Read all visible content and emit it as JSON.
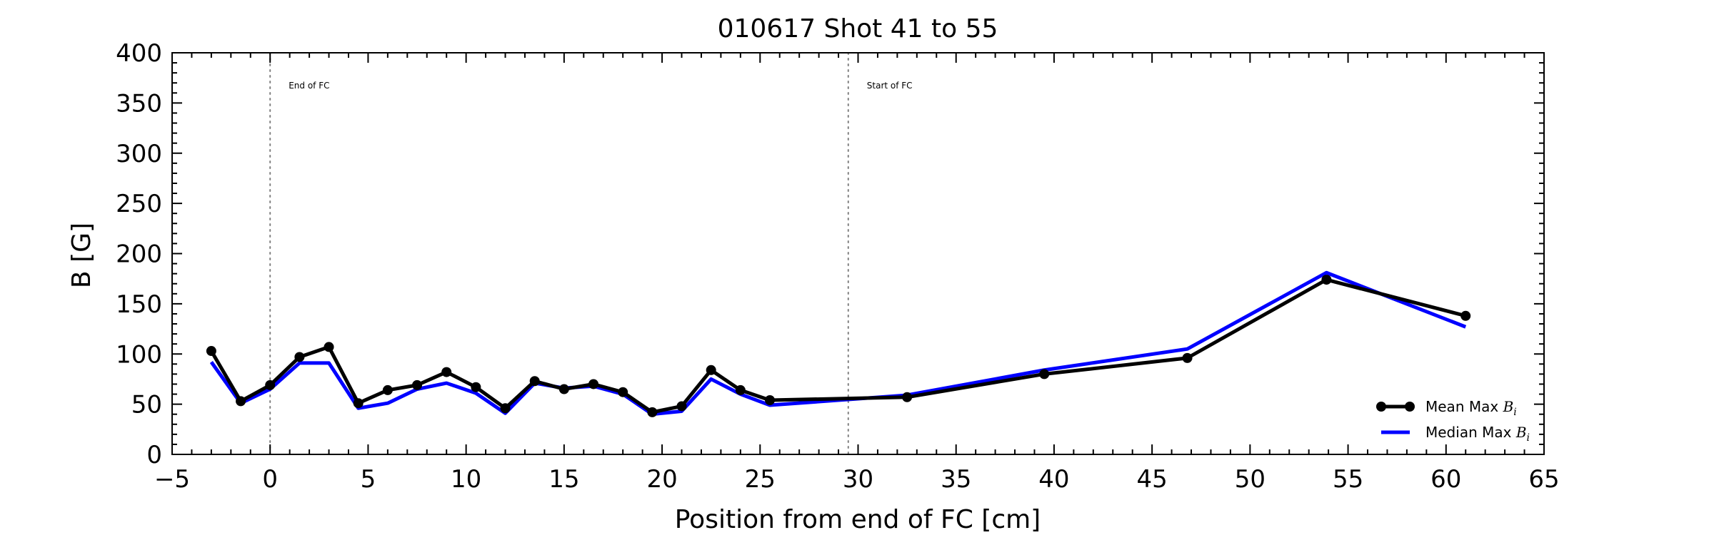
{
  "chart_data": {
    "type": "line",
    "title": "010617 Shot 41 to 55",
    "xlabel": "Position from end of FC [cm]",
    "ylabel": "B [G]",
    "xlim": [
      -5,
      65
    ],
    "ylim": [
      0,
      400
    ],
    "xticks": [
      -5,
      0,
      5,
      10,
      15,
      20,
      25,
      30,
      35,
      40,
      45,
      50,
      55,
      60,
      65
    ],
    "xtick_labels": [
      "−5",
      "0",
      "5",
      "10",
      "15",
      "20",
      "25",
      "30",
      "35",
      "40",
      "45",
      "50",
      "55",
      "60",
      "65"
    ],
    "yticks": [
      0,
      50,
      100,
      150,
      200,
      250,
      300,
      350,
      400
    ],
    "ytick_labels": [
      "0",
      "50",
      "100",
      "150",
      "200",
      "250",
      "300",
      "350",
      "400"
    ],
    "grid": false,
    "legend_position": "lower-right",
    "series": [
      {
        "name": "Mean Max B_i",
        "legend_main": "Mean Max ",
        "legend_sym": "B",
        "legend_sub": "i",
        "color": "#000000",
        "marker": "circle",
        "x": [
          -3.0,
          -1.5,
          0.0,
          1.5,
          3.0,
          4.5,
          6.0,
          7.5,
          9.0,
          10.5,
          12.0,
          13.5,
          15.0,
          16.5,
          18.0,
          19.5,
          21.0,
          22.5,
          24.0,
          25.5,
          32.5,
          39.5,
          46.8,
          53.9,
          61.0
        ],
        "y": [
          103,
          53,
          69,
          97,
          107,
          51,
          64,
          69,
          82,
          67,
          46,
          73,
          65,
          70,
          62,
          42,
          48,
          84,
          64,
          54,
          57,
          80,
          96,
          174,
          138
        ]
      },
      {
        "name": "Median Max B_i",
        "legend_main": "Median Max ",
        "legend_sym": "B",
        "legend_sub": "i",
        "color": "#0000ff",
        "marker": "none",
        "x": [
          -3.0,
          -1.5,
          0.0,
          1.5,
          3.0,
          4.5,
          6.0,
          7.5,
          9.0,
          10.5,
          12.0,
          13.5,
          15.0,
          16.5,
          18.0,
          19.5,
          21.0,
          22.5,
          24.0,
          25.5,
          32.5,
          39.5,
          46.8,
          53.9,
          61.0
        ],
        "y": [
          92,
          51,
          65,
          91,
          91,
          46,
          51,
          65,
          71,
          61,
          41,
          71,
          66,
          68,
          60,
          40,
          43,
          75,
          60,
          49,
          59,
          84,
          105,
          181,
          127
        ]
      }
    ],
    "vlines": [
      {
        "x": 0,
        "label": "End of FC",
        "color": "#808080",
        "style": "dotted"
      },
      {
        "x": 29.5,
        "label": "Start of FC",
        "color": "#808080",
        "style": "dotted"
      }
    ]
  }
}
